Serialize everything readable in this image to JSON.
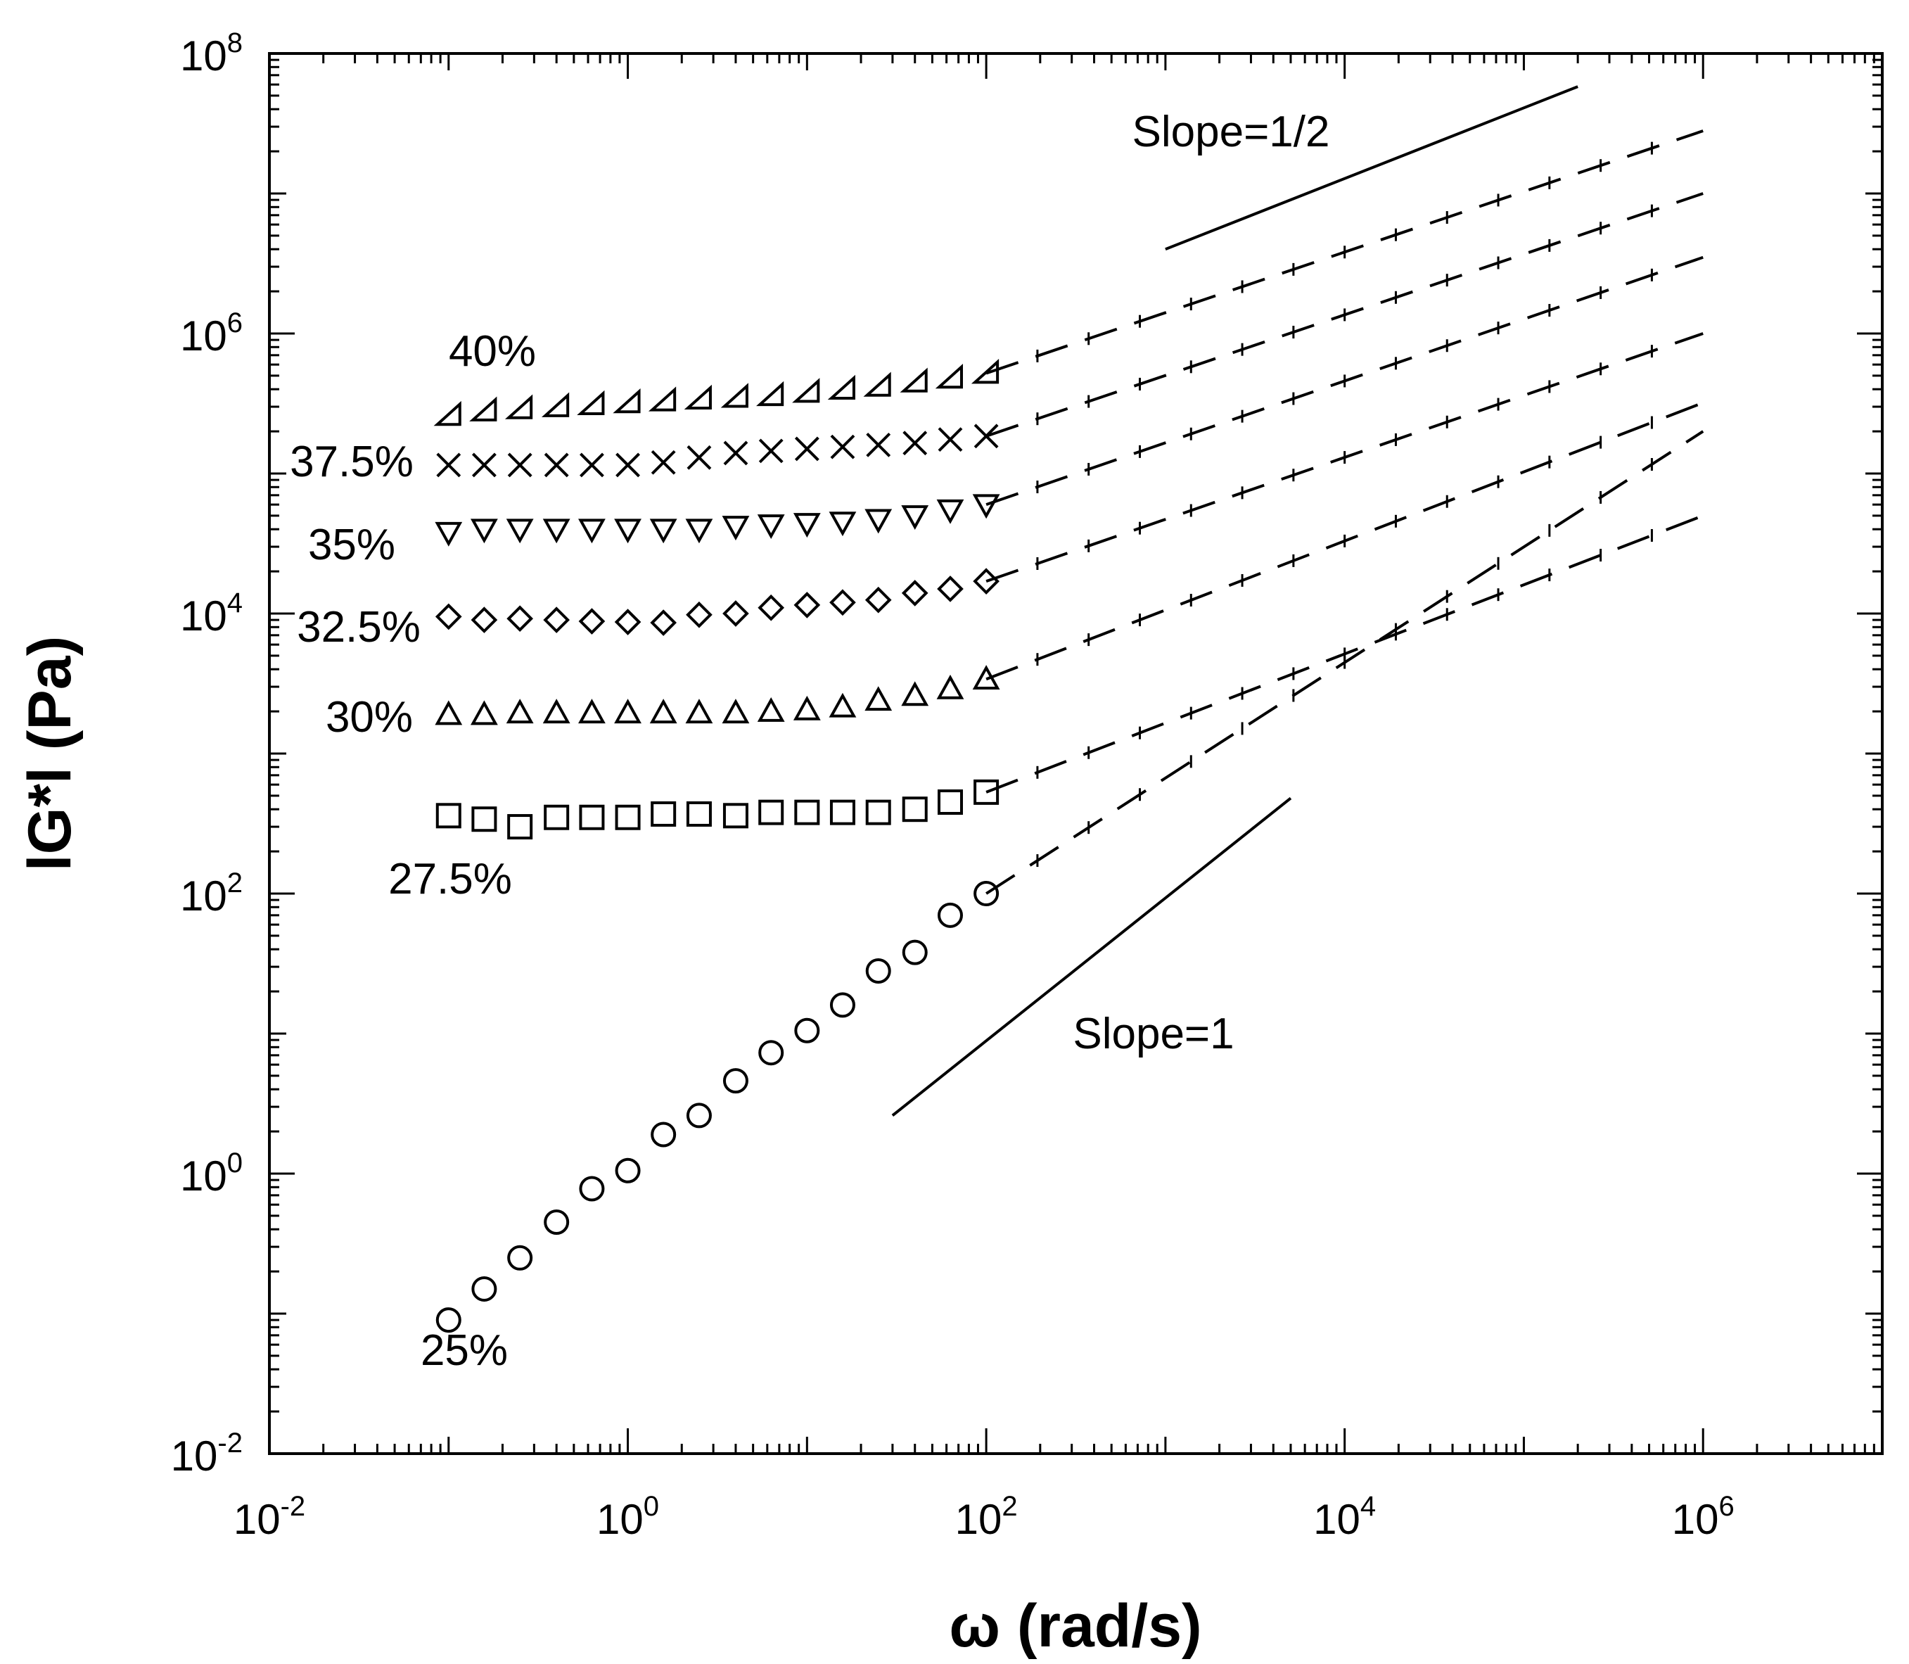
{
  "chart_data": {
    "type": "scatter",
    "title": "",
    "xlabel": "ω  (rad/s)",
    "ylabel": "lG*l (Pa)",
    "x_scale": "log",
    "y_scale": "log",
    "xlim": [
      0.01,
      10000000
    ],
    "ylim": [
      0.01,
      100000000
    ],
    "x_ticks": [
      {
        "base": "10",
        "exp": "-2",
        "value": 0.01
      },
      {
        "base": "10",
        "exp": "0",
        "value": 1
      },
      {
        "base": "10",
        "exp": "2",
        "value": 100
      },
      {
        "base": "10",
        "exp": "4",
        "value": 10000
      },
      {
        "base": "10",
        "exp": "6",
        "value": 1000000
      }
    ],
    "y_ticks": [
      {
        "base": "10",
        "exp": "-2",
        "value": 0.01
      },
      {
        "base": "10",
        "exp": "0",
        "value": 1
      },
      {
        "base": "10",
        "exp": "2",
        "value": 100
      },
      {
        "base": "10",
        "exp": "4",
        "value": 10000
      },
      {
        "base": "10",
        "exp": "6",
        "value": 1000000
      },
      {
        "base": "10",
        "exp": "8",
        "value": 100000000
      }
    ],
    "grid": false,
    "legend": "none",
    "series": [
      {
        "name": "25%",
        "marker": "circle",
        "x": [
          0.1,
          0.158,
          0.25,
          0.4,
          0.63,
          1.0,
          1.58,
          2.5,
          4.0,
          6.3,
          10,
          15.8,
          25,
          40,
          63,
          100
        ],
        "y": [
          0.09,
          0.15,
          0.25,
          0.45,
          0.78,
          1.05,
          1.9,
          2.6,
          4.6,
          7.3,
          10.5,
          16,
          28,
          38,
          70,
          100
        ],
        "fit": {
          "x": [
            100,
            1000000
          ],
          "y": [
            100,
            200000
          ]
        }
      },
      {
        "name": "27.5%",
        "marker": "square",
        "x": [
          0.1,
          0.158,
          0.25,
          0.4,
          0.63,
          1.0,
          1.58,
          2.5,
          4.0,
          6.3,
          10,
          15.8,
          25,
          40,
          63,
          100
        ],
        "y": [
          360,
          340,
          300,
          350,
          350,
          350,
          370,
          370,
          360,
          380,
          380,
          380,
          380,
          400,
          450,
          530
        ],
        "fit": {
          "x": [
            100,
            1000000
          ],
          "y": [
            530,
            50000
          ]
        }
      },
      {
        "name": "30%",
        "marker": "triangle-up",
        "x": [
          0.1,
          0.158,
          0.25,
          0.4,
          0.63,
          1.0,
          1.58,
          2.5,
          4.0,
          6.3,
          10,
          15.8,
          25,
          40,
          63,
          100
        ],
        "y": [
          1900,
          1900,
          1950,
          1950,
          1950,
          1950,
          1950,
          1950,
          1950,
          2000,
          2050,
          2150,
          2400,
          2600,
          2900,
          3400
        ],
        "fit": {
          "x": [
            100,
            1000000
          ],
          "y": [
            3400,
            320000
          ]
        }
      },
      {
        "name": "32.5%",
        "marker": "diamond",
        "x": [
          0.1,
          0.158,
          0.25,
          0.4,
          0.63,
          1.0,
          1.58,
          2.5,
          4.0,
          6.3,
          10,
          15.8,
          25,
          40,
          63,
          100
        ],
        "y": [
          9500,
          9000,
          9200,
          9000,
          8800,
          8700,
          8600,
          9800,
          10000,
          11000,
          11500,
          12000,
          12500,
          14000,
          15000,
          17000
        ],
        "fit": {
          "x": [
            100,
            1000000
          ],
          "y": [
            17000,
            1000000
          ]
        }
      },
      {
        "name": "35%",
        "marker": "triangle-down",
        "x": [
          0.1,
          0.158,
          0.25,
          0.4,
          0.63,
          1.0,
          1.58,
          2.5,
          4.0,
          6.3,
          10,
          15.8,
          25,
          40,
          63,
          100
        ],
        "y": [
          38000,
          40000,
          40000,
          40000,
          40000,
          40000,
          40000,
          40000,
          42000,
          43000,
          44000,
          45000,
          47000,
          50000,
          55000,
          60000
        ],
        "fit": {
          "x": [
            100,
            1000000
          ],
          "y": [
            60000,
            3500000
          ]
        }
      },
      {
        "name": "37.5%",
        "marker": "cross",
        "x": [
          0.1,
          0.158,
          0.25,
          0.4,
          0.63,
          1.0,
          1.58,
          2.5,
          4.0,
          6.3,
          10,
          15.8,
          25,
          40,
          63,
          100
        ],
        "y": [
          115000,
          115000,
          115000,
          115000,
          115000,
          115000,
          120000,
          130000,
          140000,
          145000,
          150000,
          155000,
          160000,
          165000,
          175000,
          185000
        ],
        "fit": {
          "x": [
            100,
            1000000
          ],
          "y": [
            185000,
            10000000
          ]
        }
      },
      {
        "name": "40%",
        "marker": "triangle-left",
        "x": [
          0.1,
          0.158,
          0.25,
          0.4,
          0.63,
          1.0,
          1.58,
          2.5,
          4.0,
          6.3,
          10,
          15.8,
          25,
          40,
          63,
          100
        ],
        "y": [
          260000,
          280000,
          290000,
          300000,
          310000,
          320000,
          330000,
          340000,
          350000,
          360000,
          380000,
          400000,
          420000,
          450000,
          480000,
          520000
        ],
        "fit": {
          "x": [
            100,
            1000000
          ],
          "y": [
            520000,
            28000000
          ]
        }
      }
    ],
    "annotations": [
      {
        "text": "Slope=1/2",
        "x": 1000,
        "y": 20000000,
        "line": {
          "x": [
            1000,
            200000
          ],
          "y": [
            4000000,
            58000000
          ]
        }
      },
      {
        "text": "Slope=1",
        "x": 400,
        "y": 10,
        "line": {
          "x": [
            30,
            5000
          ],
          "y": [
            2.6,
            480
          ]
        }
      }
    ]
  }
}
